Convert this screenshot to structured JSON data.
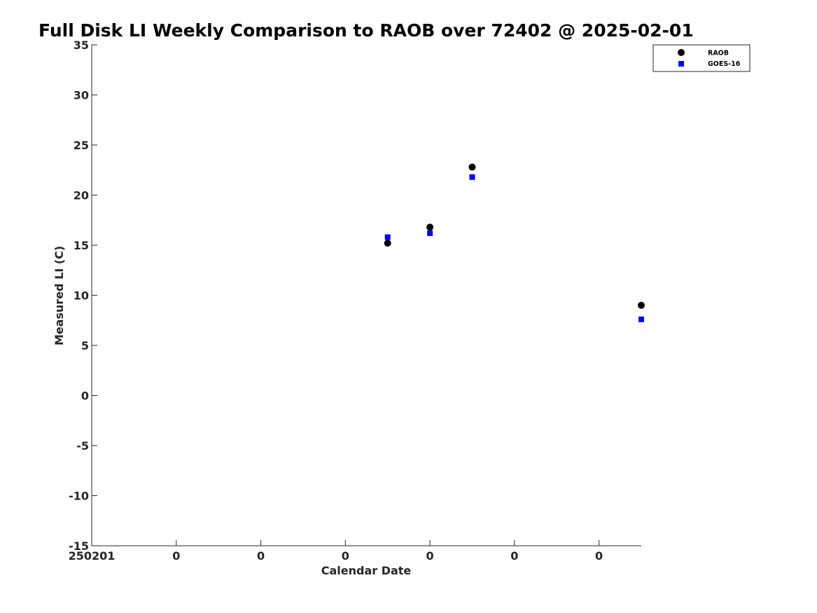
{
  "chart_data": {
    "type": "scatter",
    "title": "Full Disk LI Weekly Comparison to RAOB over 72402 @ 2025-02-01",
    "xlabel": "Calendar Date",
    "ylabel": "Measured LI (C)",
    "ylim": [
      -15,
      35
    ],
    "yticks": [
      -15,
      -10,
      -5,
      0,
      5,
      10,
      15,
      20,
      25,
      30,
      35
    ],
    "xlim": [
      0,
      6.5
    ],
    "xticks": [
      0,
      1,
      2,
      3,
      4,
      5,
      6
    ],
    "xtick_labels": [
      "250201",
      "0",
      "0",
      "0",
      "0",
      "0",
      "0"
    ],
    "grid": false,
    "legend_position": "top-right",
    "series": [
      {
        "name": "RAOB",
        "marker": "circle",
        "color": "#000000",
        "x": [
          3.5,
          4.0,
          4.5,
          6.5
        ],
        "y": [
          15.2,
          16.8,
          22.8,
          9.0
        ]
      },
      {
        "name": "GOES-16",
        "marker": "square",
        "color": "#0000ff",
        "x": [
          3.5,
          4.0,
          4.5,
          6.5
        ],
        "y": [
          15.8,
          16.2,
          21.8,
          7.6
        ]
      }
    ]
  }
}
